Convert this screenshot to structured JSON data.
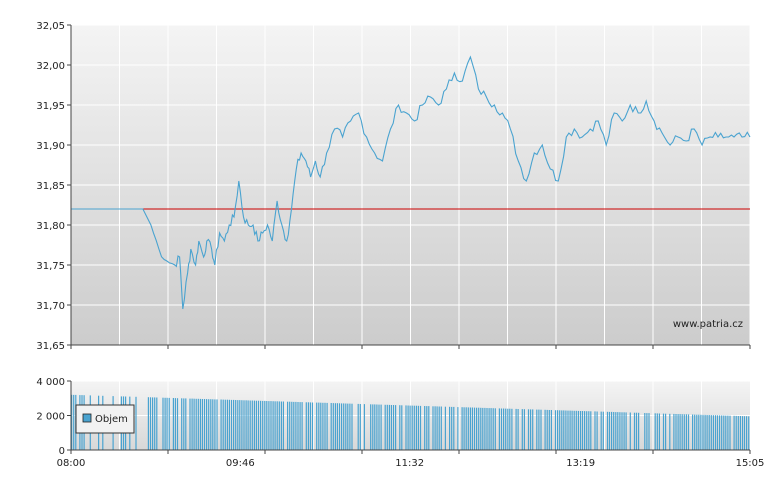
{
  "chart_data": [
    {
      "type": "line",
      "y_ticks": [
        "32,05",
        "32,00",
        "31,95",
        "31,90",
        "31,85",
        "31,80",
        "31,75",
        "31,70",
        "31,65"
      ],
      "ylim": [
        31.65,
        32.05
      ],
      "xlim": [
        "08:00",
        "15:05"
      ],
      "x_ticks": [
        "08:00",
        "09:46",
        "11:32",
        "13:19",
        "15:05"
      ],
      "reference_line": {
        "value": 31.82,
        "color": "#cc0000"
      },
      "watermark": "www.patria.cz",
      "line_color": "#4aa3d0",
      "series": [
        {
          "x": [
            "08:00",
            "08:15",
            "08:30",
            "08:45",
            "08:50",
            "08:55",
            "09:00",
            "09:05",
            "09:08",
            "09:10",
            "09:13",
            "09:15",
            "09:18",
            "09:20",
            "09:23",
            "09:25",
            "09:28",
            "09:30",
            "09:33",
            "09:36",
            "09:39",
            "09:42",
            "09:45",
            "09:48",
            "09:51",
            "09:54",
            "09:57",
            "10:00",
            "10:03",
            "10:06",
            "10:09",
            "10:12",
            "10:15",
            "10:18",
            "10:21",
            "10:24",
            "10:27",
            "10:30",
            "10:33",
            "10:36",
            "10:40",
            "10:45",
            "10:50",
            "10:55",
            "11:00",
            "11:05",
            "11:10",
            "11:15",
            "11:20",
            "11:25",
            "11:30",
            "11:35",
            "11:40",
            "11:45",
            "11:50",
            "11:55",
            "12:00",
            "12:05",
            "12:10",
            "12:15",
            "12:20",
            "12:25",
            "12:30",
            "12:35",
            "12:40",
            "12:45",
            "12:50",
            "12:55",
            "13:00",
            "13:05",
            "13:10",
            "13:15",
            "13:20",
            "13:25",
            "13:30",
            "13:35",
            "13:40",
            "13:45",
            "13:50",
            "13:55",
            "14:00",
            "14:05",
            "14:10",
            "14:15",
            "14:20",
            "14:25",
            "14:30",
            "14:35",
            "14:40",
            "14:45",
            "14:50",
            "14:55",
            "15:00",
            "15:05"
          ],
          "y": [
            31.82,
            31.82,
            31.82,
            31.82,
            31.8,
            31.77,
            31.755,
            31.75,
            31.76,
            31.695,
            31.74,
            31.77,
            31.75,
            31.78,
            31.76,
            31.78,
            31.77,
            31.75,
            31.79,
            31.78,
            31.8,
            31.81,
            31.855,
            31.81,
            31.8,
            31.8,
            31.78,
            31.79,
            31.8,
            31.78,
            31.83,
            31.8,
            31.78,
            31.82,
            31.87,
            31.89,
            31.88,
            31.86,
            31.88,
            31.86,
            31.89,
            31.92,
            31.91,
            31.93,
            31.94,
            31.91,
            31.89,
            31.88,
            31.92,
            31.95,
            31.94,
            31.93,
            31.95,
            31.96,
            31.95,
            31.97,
            31.99,
            31.98,
            32.01,
            31.97,
            31.96,
            31.95,
            31.94,
            31.92,
            31.88,
            31.855,
            31.89,
            31.9,
            31.87,
            31.855,
            31.91,
            31.92,
            31.91,
            31.92,
            31.93,
            31.9,
            31.94,
            31.93,
            31.95,
            31.94,
            31.955,
            31.93,
            31.915,
            31.9,
            31.91,
            31.905,
            31.92,
            31.9,
            31.91,
            31.91,
            31.91,
            31.91,
            31.91,
            31.91
          ]
        }
      ]
    },
    {
      "type": "bar",
      "y_ticks": [
        "4 000",
        "2 000",
        "0"
      ],
      "ylim": [
        0,
        4000
      ],
      "x_ticks": [
        "08:00",
        "09:46",
        "11:32",
        "13:19",
        "15:05"
      ],
      "legend": {
        "label": "Objem",
        "placement": "left"
      },
      "bar_color": "#4aa3d0",
      "series": [
        {
          "name": "Objem",
          "start_value": 3200,
          "end_value": 1950
        }
      ]
    }
  ]
}
